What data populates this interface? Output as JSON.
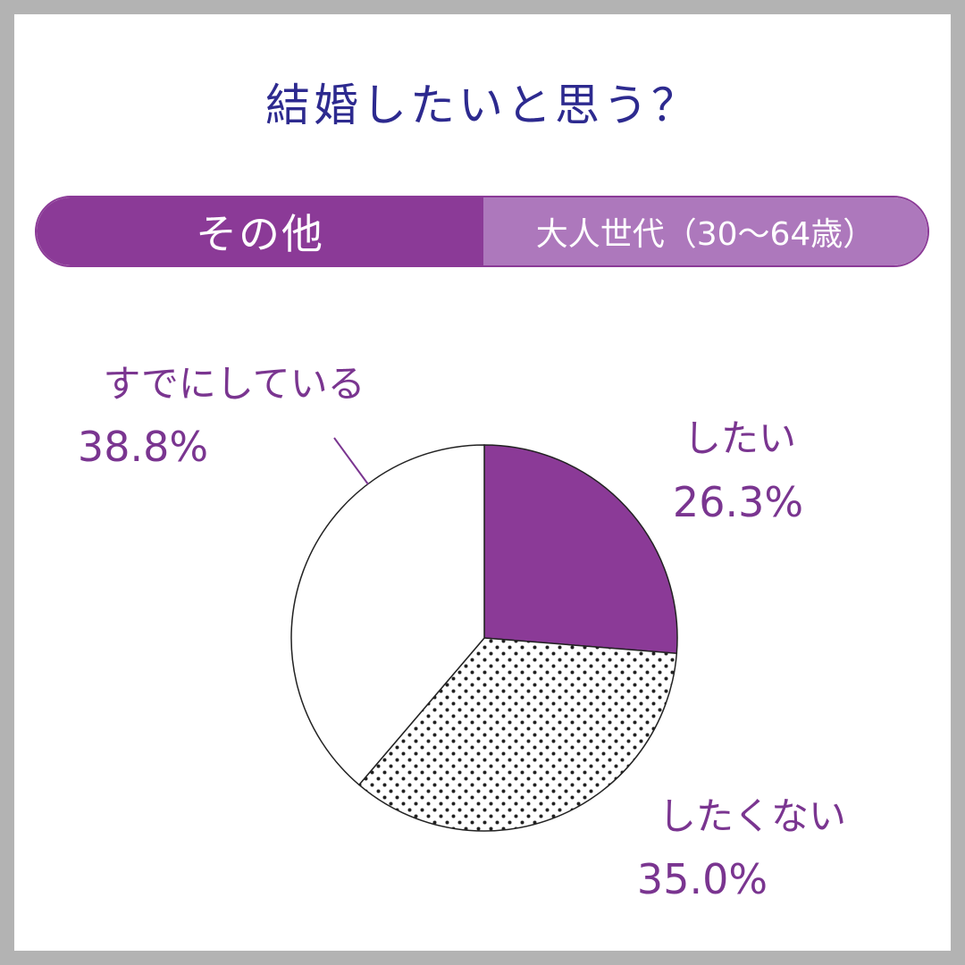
{
  "title": "結婚したいと思う？",
  "segment": {
    "left_label": "その他",
    "right_label": "大人世代（30〜64歳）"
  },
  "colors": {
    "title": "#2d2a8f",
    "accent": "#8b3a97",
    "accent_light": "#ad78bc",
    "label": "#7a3590",
    "frame": "#b3b3b3"
  },
  "chart_data": {
    "type": "pie",
    "start_angle_deg": 0,
    "direction": "clockwise",
    "slices": [
      {
        "label": "したい",
        "value": 26.3,
        "value_label": "26.3%",
        "fill": "solid-purple"
      },
      {
        "label": "したくない",
        "value": 35.0,
        "value_label": "35.0%",
        "fill": "dotted"
      },
      {
        "label": "すでにしている",
        "value": 38.8,
        "value_label": "38.8%",
        "fill": "white"
      }
    ]
  }
}
